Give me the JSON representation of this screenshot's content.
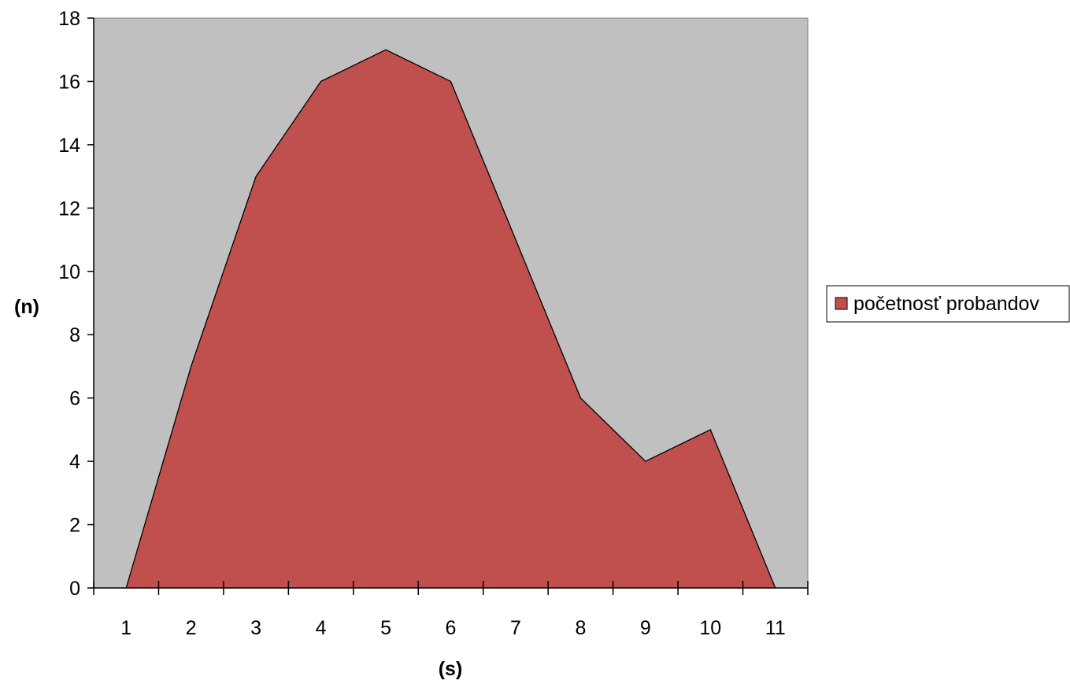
{
  "chart_data": {
    "type": "area",
    "categories": [
      "1",
      "2",
      "3",
      "4",
      "5",
      "6",
      "7",
      "8",
      "9",
      "10",
      "11"
    ],
    "series": [
      {
        "name": "početnosť probandov",
        "values": [
          0,
          7,
          13,
          16,
          17,
          16,
          11,
          6,
          4,
          5,
          0
        ],
        "color": "#C0504D"
      }
    ],
    "xlabel": "(s)",
    "ylabel": "(n)",
    "ylim": [
      0,
      18
    ],
    "yticks": [
      "0",
      "2",
      "4",
      "6",
      "8",
      "10",
      "12",
      "14",
      "16",
      "18"
    ],
    "grid": false,
    "plot_background": "#C0C0C0",
    "legend_position": "right"
  }
}
